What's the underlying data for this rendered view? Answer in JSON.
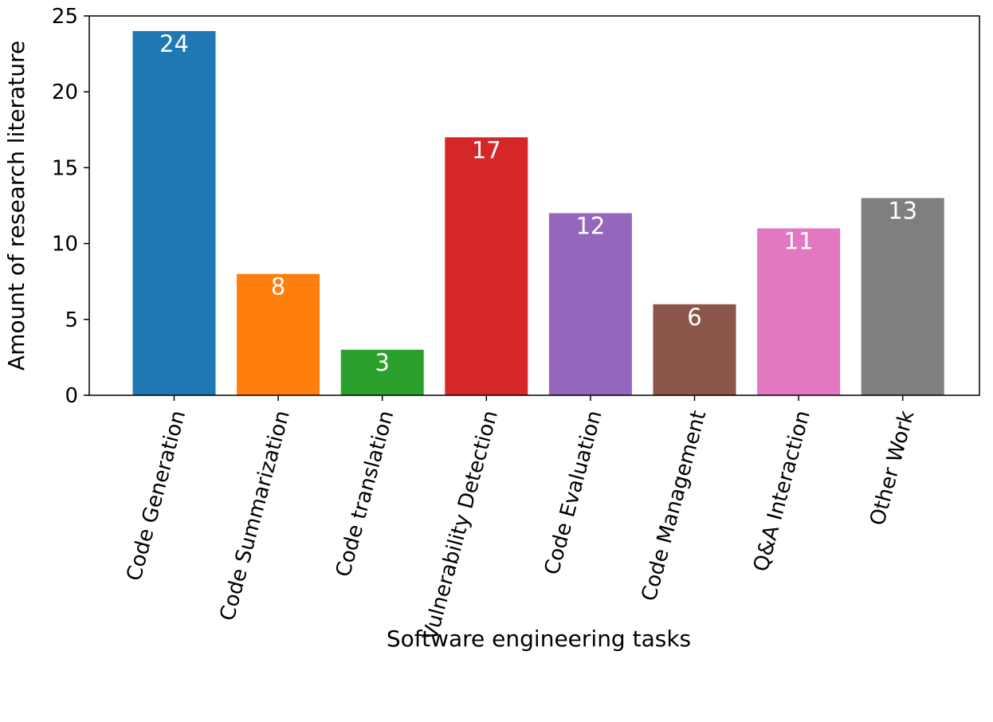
{
  "chart_data": {
    "type": "bar",
    "title": "",
    "categories": [
      "Code Generation",
      "Code Summarization",
      "Code translation",
      "Vulnerability Detection",
      "Code Evaluation",
      "Code Management",
      "Q&A Interaction",
      "Other Work"
    ],
    "values": [
      24,
      8,
      3,
      17,
      12,
      6,
      11,
      13
    ],
    "value_labels": [
      "24",
      "8",
      "3",
      "17",
      "12",
      "6",
      "11",
      "13"
    ],
    "colors": [
      "#1f77b4",
      "#ff7f0e",
      "#2ca02c",
      "#d62728",
      "#9467bd",
      "#8c564b",
      "#e377c2",
      "#7f7f7f"
    ],
    "xlabel": "Software engineering tasks",
    "ylabel": "Amount of research literature",
    "ylim": [
      0,
      25
    ],
    "yticks": [
      0,
      5,
      10,
      15,
      20,
      25
    ],
    "ytick_labels": [
      "0",
      "5",
      "10",
      "15",
      "20",
      "25"
    ],
    "grid": false,
    "legend": "none"
  }
}
